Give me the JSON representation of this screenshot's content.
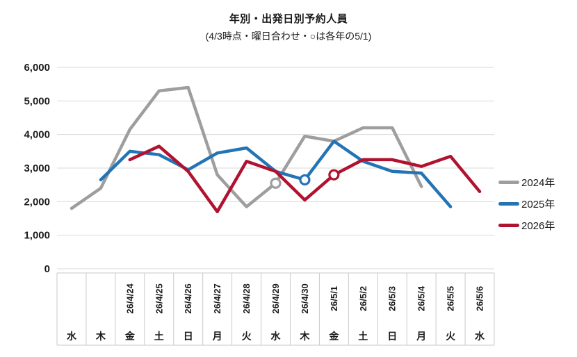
{
  "chart_data": {
    "type": "line",
    "title": "年別・出発日別予約人員",
    "subtitle": "(4/3時点・曜日合わせ・○は各年の5/1)",
    "marker_note": "○は各年の5/1",
    "ylim": [
      0,
      6000
    ],
    "ytick_step": 1000,
    "y_ticks": [
      "6,000",
      "5,000",
      "4,000",
      "3,000",
      "2,000",
      "1,000",
      "0"
    ],
    "grid": "horizontal",
    "legend_position": "right",
    "categories": [
      {
        "date": "",
        "day": "水"
      },
      {
        "date": "",
        "day": "木"
      },
      {
        "date": "26/4/24",
        "day": "金"
      },
      {
        "date": "26/4/25",
        "day": "土"
      },
      {
        "date": "26/4/26",
        "day": "日"
      },
      {
        "date": "26/4/27",
        "day": "月"
      },
      {
        "date": "26/4/28",
        "day": "火"
      },
      {
        "date": "26/4/29",
        "day": "水"
      },
      {
        "date": "26/4/30",
        "day": "木"
      },
      {
        "date": "26/5/1",
        "day": "金"
      },
      {
        "date": "26/5/2",
        "day": "土"
      },
      {
        "date": "26/5/3",
        "day": "日"
      },
      {
        "date": "26/5/4",
        "day": "月"
      },
      {
        "date": "26/5/5",
        "day": "火"
      },
      {
        "date": "26/5/6",
        "day": "水"
      }
    ],
    "series": [
      {
        "name": "2024年",
        "color": "#9E9E9E",
        "marker_index": 7,
        "values": [
          1800,
          2400,
          4150,
          5300,
          5400,
          2800,
          1850,
          2550,
          3950,
          3800,
          4200,
          4200,
          2450,
          null,
          null
        ]
      },
      {
        "name": "2025年",
        "color": "#2374B5",
        "marker_index": 8,
        "values": [
          null,
          2650,
          3500,
          3400,
          2950,
          3450,
          3600,
          2900,
          2650,
          3800,
          3200,
          2900,
          2850,
          1850,
          null
        ]
      },
      {
        "name": "2026年",
        "color": "#B01230",
        "marker_index": 9,
        "values": [
          null,
          null,
          3250,
          3650,
          2900,
          1700,
          3200,
          2900,
          2050,
          2800,
          3250,
          3250,
          3050,
          3350,
          2300
        ]
      }
    ],
    "colors": {
      "gridline": "#D9D9D9",
      "axis_table_border": "#C9C9C9",
      "text": "#1a1a1a",
      "marker_fill": "#FFFFFF"
    }
  }
}
